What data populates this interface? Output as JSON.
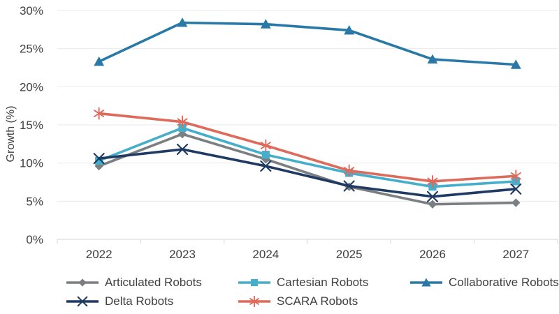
{
  "chart_data": {
    "type": "line",
    "title": "",
    "xlabel": "",
    "ylabel": "Growth (%)",
    "ylim": [
      0,
      30
    ],
    "yticks": [
      0,
      5,
      10,
      15,
      20,
      25,
      30
    ],
    "ytick_labels": [
      "0%",
      "5%",
      "10%",
      "15%",
      "20%",
      "25%",
      "30%"
    ],
    "categories": [
      "2022",
      "2023",
      "2024",
      "2025",
      "2026",
      "2027"
    ],
    "grid": "horizontal",
    "legend_position": "bottom",
    "series": [
      {
        "name": "Articulated Robots",
        "marker": "diamond",
        "color": "#7C7F82",
        "values": [
          9.6,
          13.8,
          10.5,
          6.9,
          4.6,
          4.8
        ]
      },
      {
        "name": "Cartesian Robots",
        "marker": "square",
        "color": "#45AECB",
        "values": [
          10.3,
          14.6,
          11.1,
          8.7,
          6.9,
          7.6
        ]
      },
      {
        "name": "Collaborative Robots",
        "marker": "triangle",
        "color": "#2979A8",
        "values": [
          23.3,
          28.4,
          28.2,
          27.4,
          23.6,
          22.9
        ]
      },
      {
        "name": "Delta Robots",
        "marker": "x",
        "color": "#1F3A63",
        "values": [
          10.6,
          11.8,
          9.6,
          7.0,
          5.6,
          6.6
        ]
      },
      {
        "name": "SCARA Robots",
        "marker": "asterisk",
        "color": "#DD6A5A",
        "values": [
          16.5,
          15.4,
          12.3,
          9.0,
          7.6,
          8.3
        ]
      }
    ],
    "colors": {
      "grid": "#EAEAEA",
      "axis": "#D6D6D6",
      "text": "#3F3F3F"
    }
  }
}
